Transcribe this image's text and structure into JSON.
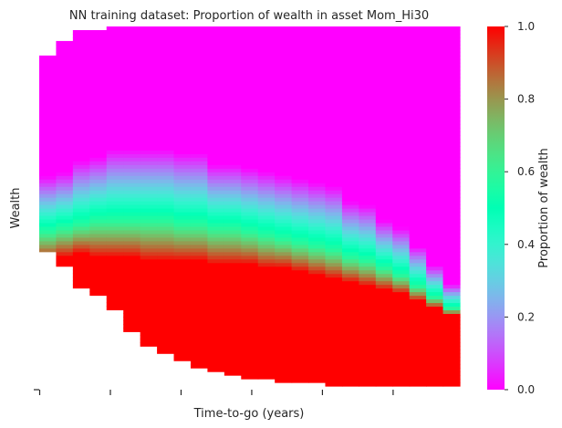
{
  "chart_data": {
    "type": "heatmap",
    "title": "NN training dataset: Proportion of wealth in asset Mom_Hi30",
    "xlabel": "Time-to-go (years)",
    "ylabel": "Wealth",
    "colorbar": {
      "label": "Proportion of wealth",
      "min": 0.0,
      "max": 1.0,
      "ticks": [
        "0.0",
        "0.2",
        "0.4",
        "0.6",
        "0.8",
        "1.0"
      ],
      "colormap": "rainbow"
    },
    "x_tick_labels": [
      "",
      "",
      "",
      "",
      "",
      ""
    ],
    "y_tick_labels": [],
    "grid": false,
    "time_steps": 25,
    "wealth_bins": 100,
    "boundaries": {
      "red_below_row_by_step": [
        35,
        36,
        37,
        36,
        36,
        36,
        35,
        35,
        35,
        35,
        34,
        34,
        34,
        33,
        33,
        32,
        31,
        30,
        29,
        28,
        27,
        26,
        24,
        22,
        20
      ],
      "gradient_width_by_step": [
        7,
        7,
        8,
        8,
        9,
        9,
        9,
        9,
        9,
        9,
        8,
        8,
        8,
        8,
        8,
        8,
        8,
        8,
        7,
        7,
        6,
        6,
        5,
        4,
        3
      ],
      "green_center_row_by_step": [
        43,
        44,
        45,
        46,
        46,
        46,
        46,
        46,
        45,
        45,
        44,
        44,
        43,
        42,
        41,
        40,
        39,
        38,
        36,
        35,
        33,
        31,
        28,
        25,
        22
      ],
      "data_top_row_by_step": [
        92,
        96,
        99,
        99,
        100,
        100,
        100,
        100,
        100,
        100,
        100,
        100,
        100,
        100,
        100,
        100,
        100,
        100,
        100,
        100,
        100,
        100,
        100,
        100,
        100
      ],
      "data_bottom_row_by_step": [
        38,
        34,
        28,
        26,
        22,
        16,
        12,
        10,
        8,
        6,
        5,
        4,
        3,
        3,
        2,
        2,
        2,
        1,
        1,
        1,
        1,
        1,
        1,
        1,
        1
      ]
    }
  }
}
